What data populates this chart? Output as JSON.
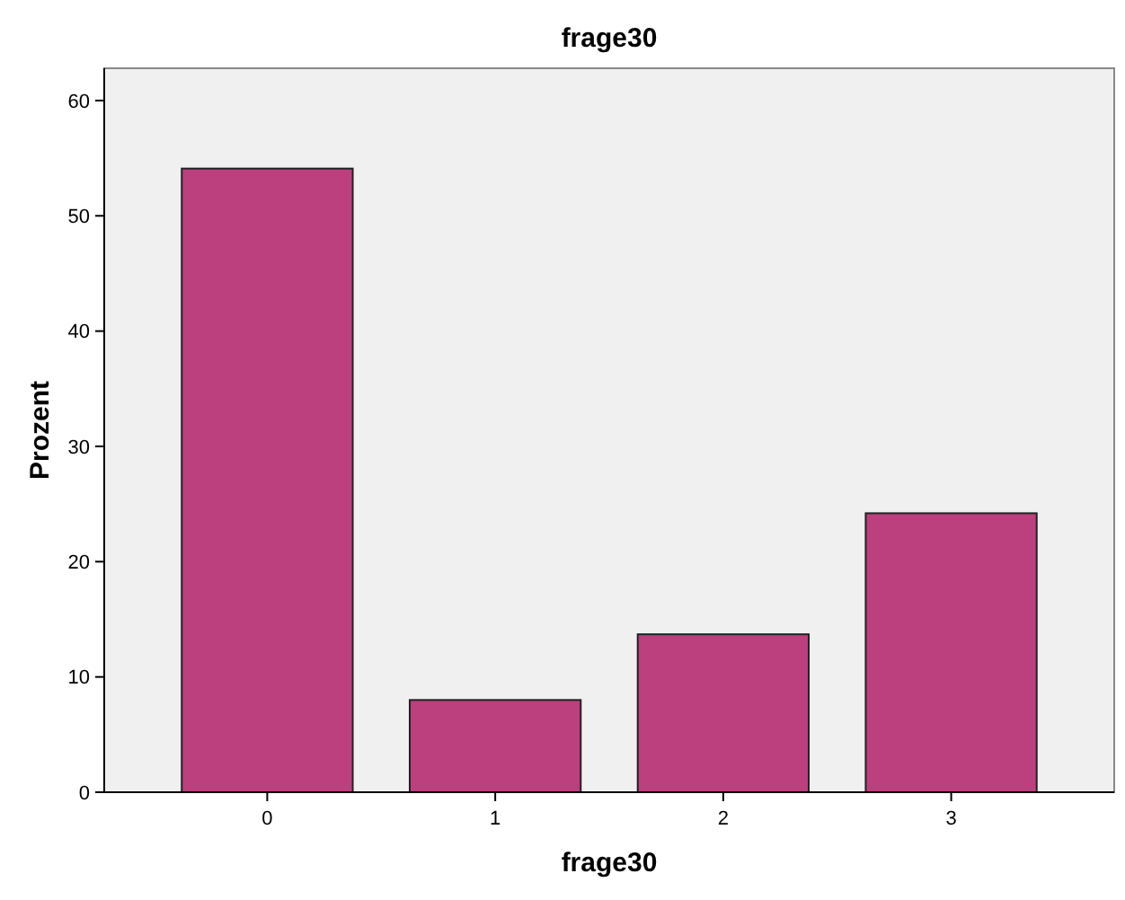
{
  "chart_data": {
    "type": "bar",
    "title": "frage30",
    "xlabel": "frage30",
    "ylabel": "Prozent",
    "categories": [
      "0",
      "1",
      "2",
      "3"
    ],
    "values": [
      54.1,
      8.0,
      13.7,
      24.2
    ],
    "color": "#bc3f7e",
    "ylim": [
      0,
      62.8
    ],
    "yticks": [
      0,
      10,
      20,
      30,
      40,
      50,
      60
    ]
  }
}
